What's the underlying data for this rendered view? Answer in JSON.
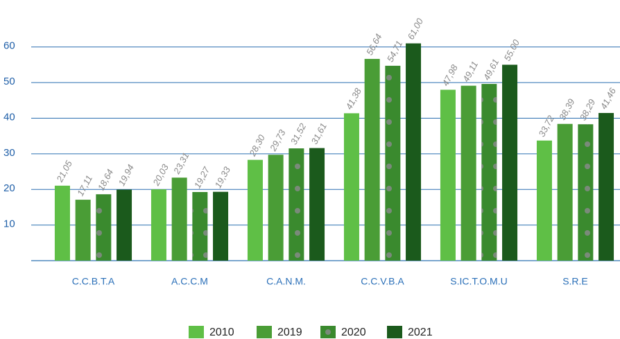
{
  "chart_data": {
    "type": "bar",
    "categories": [
      "C.C.B.T.A",
      "A.C.C.M",
      "C.A.N.M.",
      "C.C.V.B.A",
      "S.IC.T.O.M.U",
      "S.R.E"
    ],
    "series": [
      {
        "name": "2010",
        "color": "#5fbf46",
        "values": [
          21.05,
          20.03,
          28.3,
          41.38,
          47.98,
          33.72
        ],
        "value_labels": [
          "21,05",
          "20,03",
          "28,30",
          "41,38",
          "47,98",
          "33,72"
        ]
      },
      {
        "name": "2019",
        "color": "#4a9d36",
        "values": [
          17.11,
          23.31,
          29.73,
          56.64,
          49.11,
          38.39
        ],
        "value_labels": [
          "17,11",
          "23,31",
          "29,73",
          "56,64",
          "49,11",
          "38,39"
        ]
      },
      {
        "name": "2020",
        "color": "#3a8a2e",
        "dotted": true,
        "values": [
          18.64,
          19.27,
          31.52,
          54.71,
          49.61,
          38.29
        ],
        "value_labels": [
          "18,64",
          "19,27",
          "31,52",
          "54,71",
          "49,61",
          "38,29"
        ]
      },
      {
        "name": "2021",
        "color": "#1b5a1c",
        "values": [
          19.94,
          19.33,
          31.61,
          61.0,
          55.0,
          41.46
        ],
        "value_labels": [
          "19,94",
          "19,33",
          "31,61",
          "61,00",
          "55.00",
          "41,46"
        ]
      }
    ],
    "ylim": [
      0,
      65
    ],
    "yticks": [
      10,
      20,
      30,
      40,
      50,
      60
    ],
    "grid": true,
    "legend": "bottom"
  }
}
